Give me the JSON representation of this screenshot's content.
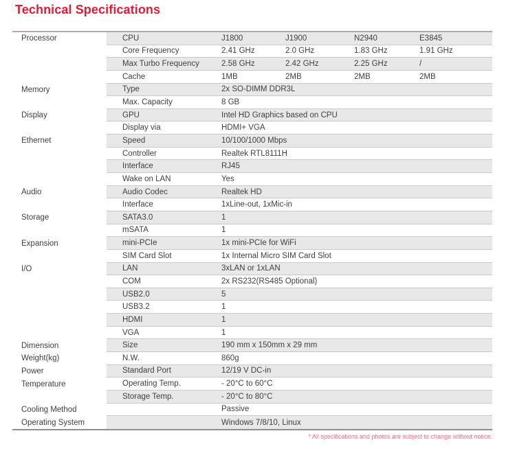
{
  "page": {
    "title": "Technical Specifications",
    "footnote": "* All specifications and photos are subject to change without notice."
  },
  "colors": {
    "accent": "#e81a33",
    "footnote_red": "#ee707b",
    "stripe": "#e8e8e8",
    "text": "#404040",
    "divider": "#c9c9c9",
    "border_top": "#ababab",
    "border_bottom": "#8e8e8e"
  },
  "table": {
    "rows": [
      {
        "category": "Processor",
        "label": "CPU",
        "values": [
          "J1800",
          "J1900",
          "N2940",
          "E3845"
        ]
      },
      {
        "category": "",
        "label": "Core Frequency",
        "values": [
          "2.41 GHz",
          "2.0 GHz",
          "1.83 GHz",
          "1.91 GHz"
        ]
      },
      {
        "category": "",
        "label": "Max Turbo Frequency",
        "values": [
          "2.58 GHz",
          "2.42 GHz",
          "2.25 GHz",
          "/"
        ]
      },
      {
        "category": "",
        "label": "Cache",
        "values": [
          "1MB",
          "2MB",
          "2MB",
          "2MB"
        ]
      },
      {
        "category": "Memory",
        "label": "Type",
        "values": [
          "2x SO-DIMM DDR3L"
        ]
      },
      {
        "category": "",
        "label": "Max. Capacity",
        "values": [
          "8 GB"
        ]
      },
      {
        "category": "Display",
        "label": "GPU",
        "values": [
          "Intel HD Graphics based on CPU"
        ]
      },
      {
        "category": "",
        "label": "Display via",
        "values": [
          "HDMI+ VGA"
        ]
      },
      {
        "category": "Ethernet",
        "label": "Speed",
        "values": [
          "10/100/1000 Mbps"
        ]
      },
      {
        "category": "",
        "label": "Controller",
        "values": [
          "Realtek RTL8111H"
        ]
      },
      {
        "category": "",
        "label": "Interface",
        "values": [
          "RJ45"
        ]
      },
      {
        "category": "",
        "label": "Wake on LAN",
        "values": [
          "Yes"
        ]
      },
      {
        "category": "Audio",
        "label": "Audio Codec",
        "values": [
          "Realtek HD"
        ]
      },
      {
        "category": "",
        "label": "Interface",
        "values": [
          "1xLine-out, 1xMic-in"
        ]
      },
      {
        "category": "Storage",
        "label": "SATA3.0",
        "values": [
          "1"
        ]
      },
      {
        "category": "",
        "label": "mSATA",
        "values": [
          "1"
        ]
      },
      {
        "category": "Expansion",
        "label": "mini-PCIe",
        "values": [
          "1x mini-PCIe for WiFi"
        ]
      },
      {
        "category": "",
        "label": "SIM Card Slot",
        "values": [
          "1x Internal Micro SIM Card Slot"
        ]
      },
      {
        "category": "I/O",
        "label": "LAN",
        "values": [
          "3xLAN or 1xLAN"
        ]
      },
      {
        "category": "",
        "label": "COM",
        "values": [
          "2x RS232(RS485 Optional)"
        ]
      },
      {
        "category": "",
        "label": "USB2.0",
        "values": [
          "5"
        ]
      },
      {
        "category": "",
        "label": "USB3.2",
        "values": [
          "1"
        ]
      },
      {
        "category": "",
        "label": "HDMI",
        "values": [
          "1"
        ]
      },
      {
        "category": "",
        "label": "VGA",
        "values": [
          "1"
        ]
      },
      {
        "category": "Dimension",
        "label": "Size",
        "values": [
          "190 mm x 150mm x 29 mm"
        ]
      },
      {
        "category": "Weight(kg)",
        "label": "N.W.",
        "values": [
          "860g"
        ]
      },
      {
        "category": "Power",
        "label": "Standard Port",
        "values": [
          "12/19 V DC-in"
        ]
      },
      {
        "category": "Temperature",
        "label": "Operating Temp.",
        "values": [
          "- 20°C to 60°C"
        ]
      },
      {
        "category": "",
        "label": "Storage Temp.",
        "values": [
          "- 20°C to 80°C"
        ]
      },
      {
        "category": "Cooling Method",
        "label": "",
        "values": [
          "Passive"
        ]
      },
      {
        "category": "Operating System",
        "label": "",
        "values": [
          "Windows 7/8/10, Linux"
        ]
      }
    ]
  }
}
